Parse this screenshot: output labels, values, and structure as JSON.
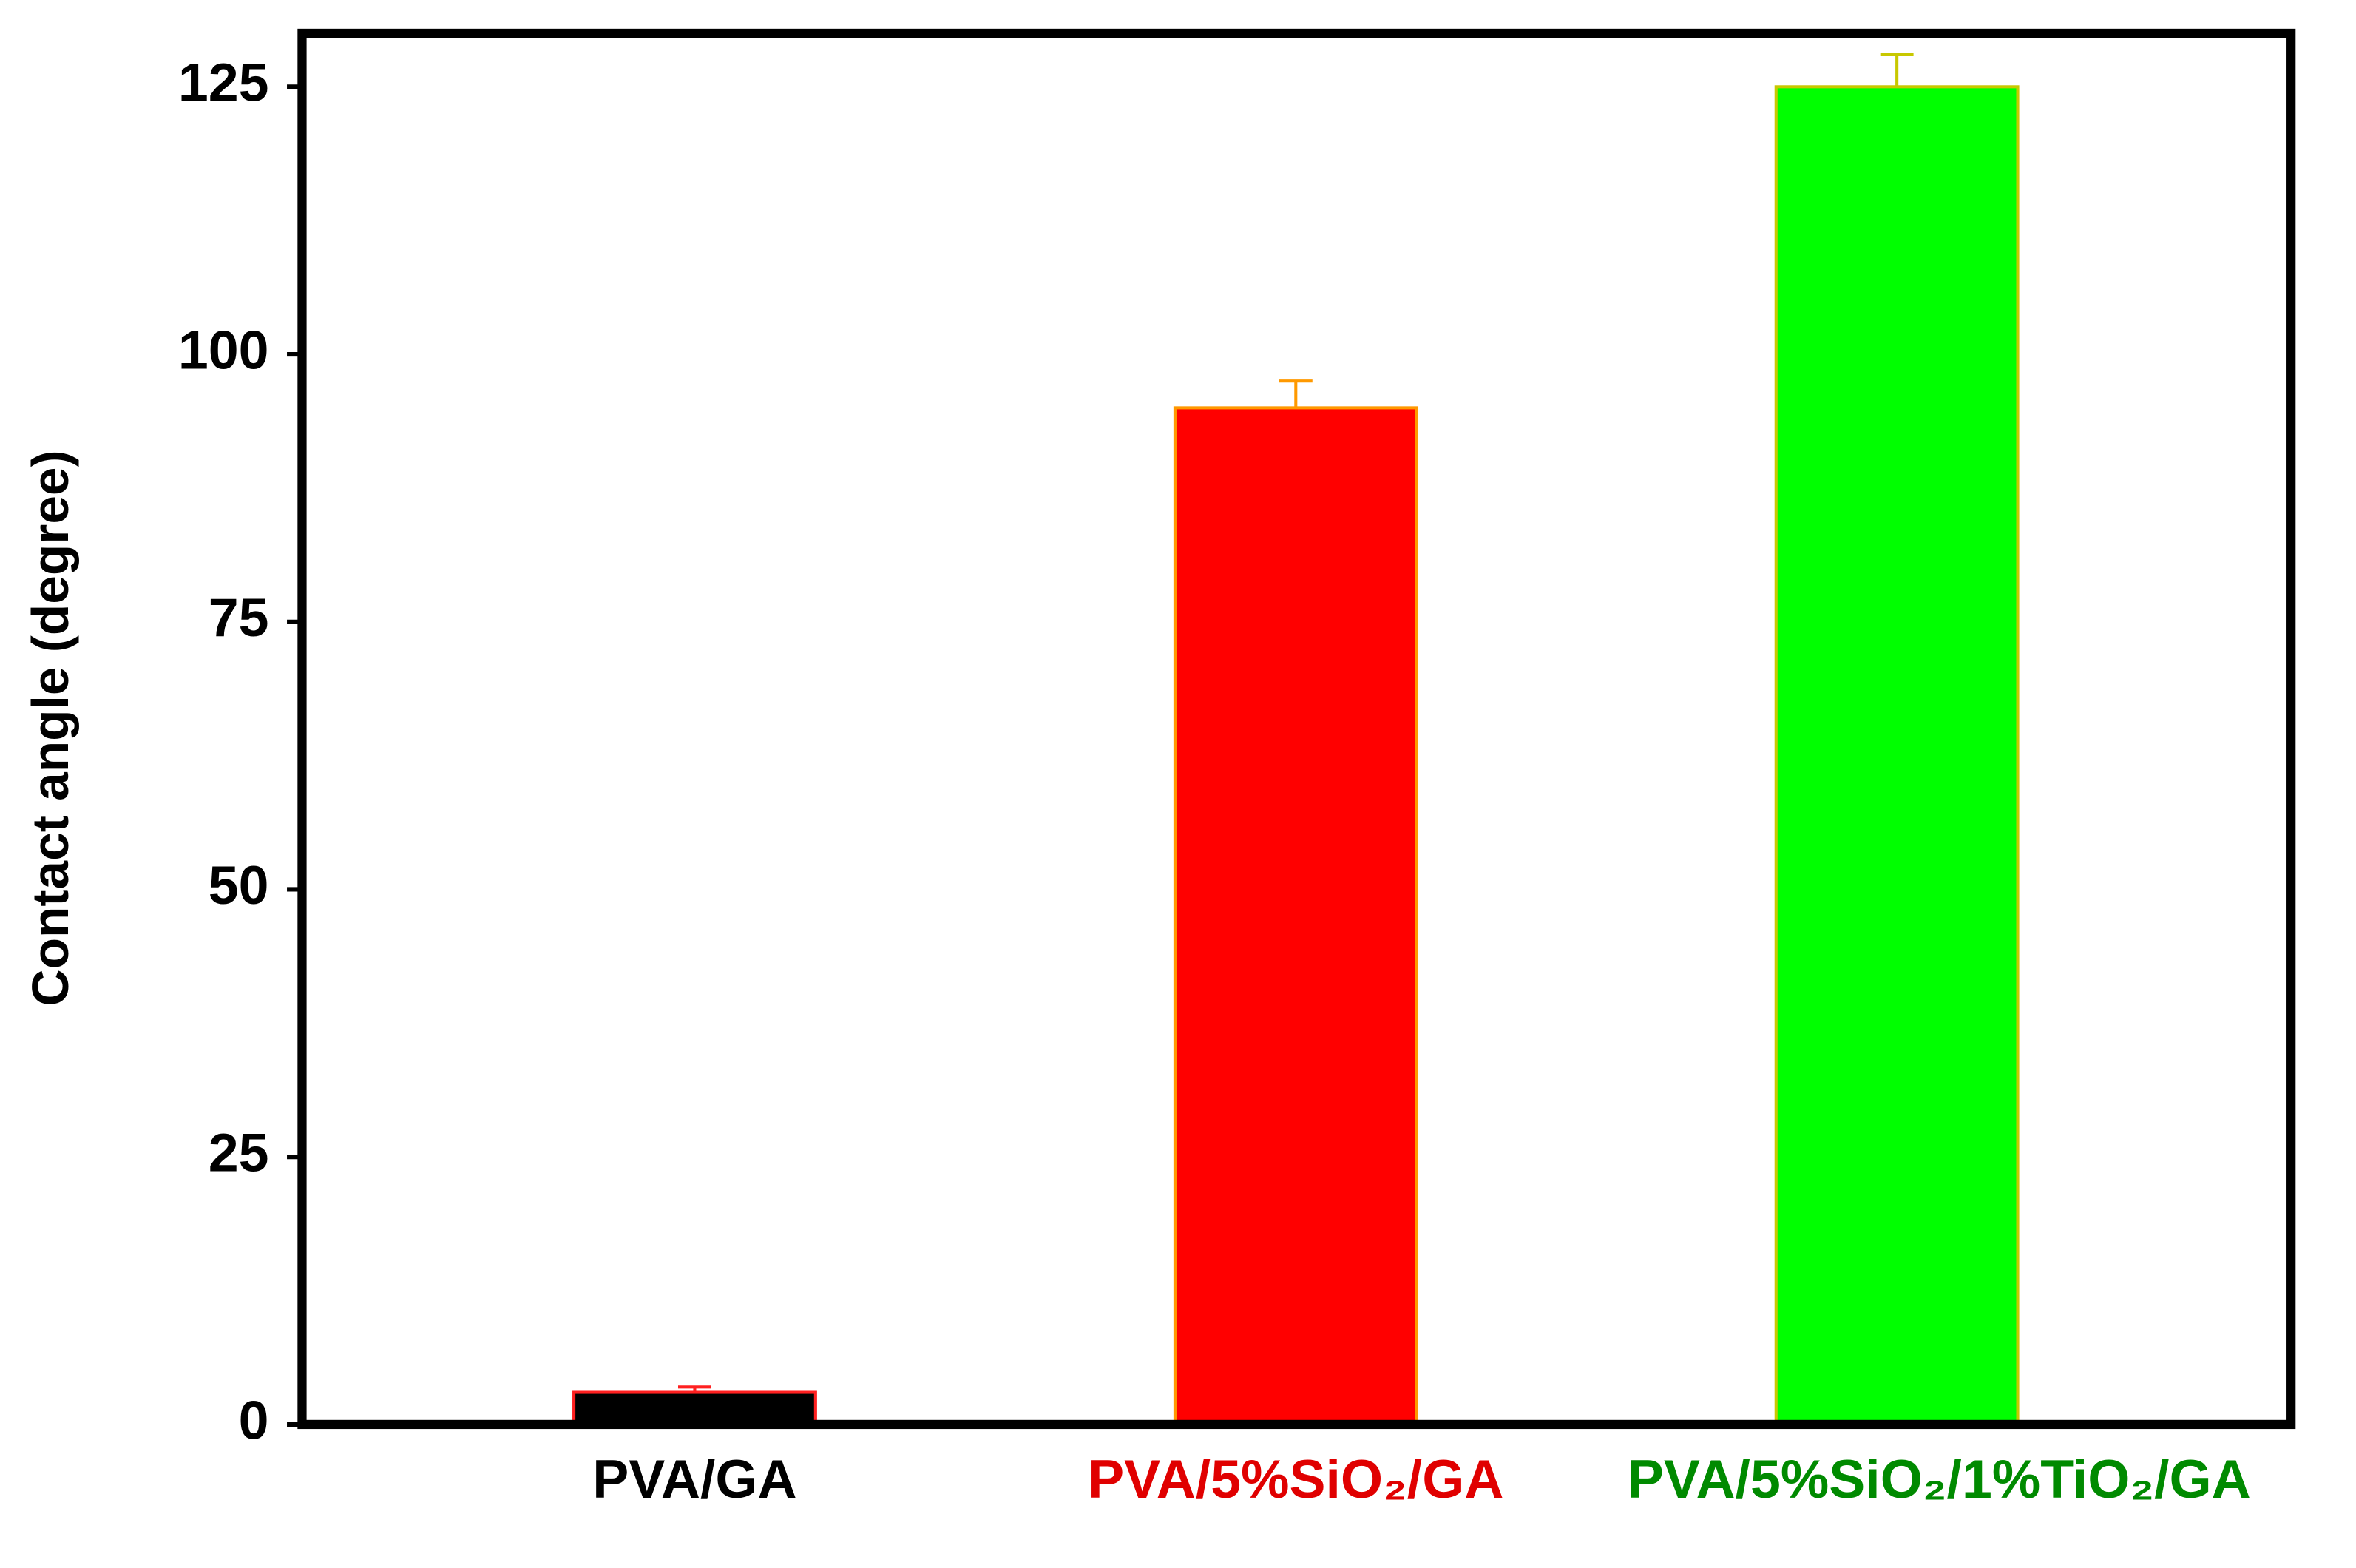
{
  "chart_data": {
    "type": "bar",
    "ylabel": "Contact angle (degree)",
    "categories": [
      "PVA/GA",
      "PVA/5%SiO₂/GA",
      "PVA/5%SiO₂/1%TiO₂/GA"
    ],
    "category_colors": [
      "#000000",
      "#e00000",
      "#008a00"
    ],
    "values": [
      3,
      95,
      125
    ],
    "errors": [
      0.5,
      2.5,
      3
    ],
    "colors": [
      "#000000",
      "#ff0000",
      "#00ff00"
    ],
    "edge_colors": [
      "#ff2020",
      "#ff9900",
      "#c8c800"
    ],
    "ylim": [
      0,
      130
    ],
    "yticks": [
      0,
      25,
      50,
      75,
      100,
      125
    ]
  }
}
